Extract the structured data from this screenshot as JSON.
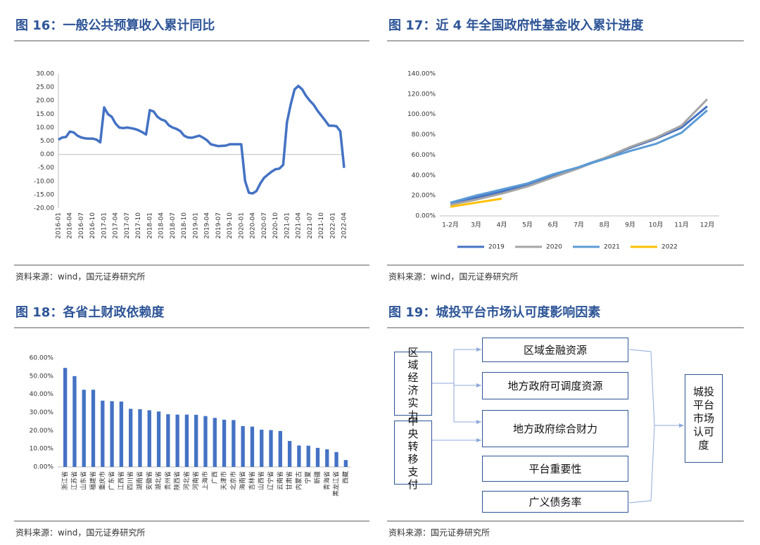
{
  "chart_data": [
    {
      "type": "line",
      "title": "图 16：一般公共预算收入累计同比",
      "source": "资料来源：wind，国元证券研究所",
      "color": "#4472c4",
      "categories": [
        "2016-01",
        null,
        null,
        "2016-04",
        null,
        null,
        "2016-07",
        null,
        null,
        "2016-10",
        null,
        null,
        "2017-01",
        null,
        null,
        "2017-04",
        null,
        null,
        "2017-07",
        null,
        null,
        "2017-10",
        null,
        null,
        "2018-01",
        null,
        null,
        "2018-04",
        null,
        null,
        "2018-07",
        null,
        null,
        "2018-10",
        null,
        null,
        "2019-01",
        null,
        null,
        "2019-04",
        null,
        null,
        "2019-07",
        null,
        null,
        "2019-10",
        null,
        null,
        "2020-01",
        null,
        null,
        "2020-04",
        null,
        null,
        "2020-07",
        null,
        null,
        "2020-10",
        null,
        null,
        "2021-01",
        null,
        null,
        "2021-04",
        null,
        null,
        "2021-07",
        null,
        null,
        "2021-10",
        null,
        null,
        "2022-01",
        null,
        null,
        "2022-04"
      ],
      "values": [
        5.5,
        6.3,
        6.5,
        8.5,
        8.2,
        7.0,
        6.3,
        6.0,
        5.9,
        5.9,
        5.5,
        4.5,
        17.5,
        15.0,
        14.0,
        11.5,
        10.0,
        9.8,
        10.0,
        9.8,
        9.5,
        9.0,
        8.3,
        7.4,
        16.5,
        16.0,
        14.0,
        13.0,
        12.5,
        10.8,
        10.0,
        9.5,
        8.7,
        7.0,
        6.3,
        6.2,
        6.6,
        7.0,
        6.2,
        5.3,
        3.8,
        3.4,
        3.1,
        3.2,
        3.3,
        3.8,
        3.8,
        3.8,
        3.8,
        -9.9,
        -14.3,
        -14.5,
        -13.6,
        -10.8,
        -8.7,
        -7.5,
        -6.4,
        -5.5,
        -5.3,
        -3.9,
        12.0,
        18.7,
        24.2,
        25.5,
        24.2,
        21.8,
        20.0,
        18.5,
        16.3,
        14.5,
        12.7,
        10.7,
        10.7,
        10.5,
        8.6,
        -5.0
      ],
      "ylim": [
        -20,
        30
      ],
      "yticks": [
        {
          "value": 30,
          "label": "30.00"
        },
        {
          "value": 25,
          "label": "25.00"
        },
        {
          "value": 20,
          "label": "20.00"
        },
        {
          "value": 15,
          "label": "15.00"
        },
        {
          "value": 10,
          "label": "10.00"
        },
        {
          "value": 5,
          "label": "5.00"
        },
        {
          "value": 0,
          "label": "0.00"
        },
        {
          "value": -5,
          "label": "-5.00"
        },
        {
          "value": -10,
          "label": "-10.00"
        },
        {
          "value": -15,
          "label": "-15.00"
        },
        {
          "value": -20,
          "label": "-20.00"
        }
      ],
      "grid": false
    },
    {
      "type": "line",
      "title": "图 17：近 4 年全国政府性基金收入累计进度",
      "source": "资料来源：wind，国元证券研究所",
      "categories": [
        "1-2月",
        "3月",
        "4月",
        "5月",
        "6月",
        "7月",
        "8月",
        "9月",
        "10月",
        "11月",
        "12月"
      ],
      "series": [
        {
          "name": "2019",
          "color": "#4472c4",
          "values": [
            12.5,
            18,
            24,
            31,
            40,
            48,
            57,
            67,
            76,
            87,
            108
          ]
        },
        {
          "name": "2020",
          "color": "#a5a5a5",
          "values": [
            11,
            16,
            22,
            29,
            38,
            47,
            57,
            68,
            77,
            89,
            115
          ]
        },
        {
          "name": "2021",
          "color": "#5b9bd5",
          "values": [
            13,
            20,
            26,
            32,
            41,
            48,
            56,
            64,
            71,
            82,
            104
          ]
        },
        {
          "name": "2022",
          "color": "#ffc000",
          "values": [
            9,
            13,
            17,
            null,
            null,
            null,
            null,
            null,
            null,
            null,
            null
          ]
        }
      ],
      "ylim": [
        0,
        140
      ],
      "yticks": [
        {
          "value": 0,
          "label": "0.00%"
        },
        {
          "value": 20,
          "label": "20.00%"
        },
        {
          "value": 40,
          "label": "40.00%"
        },
        {
          "value": 60,
          "label": "60.00%"
        },
        {
          "value": 80,
          "label": "80.00%"
        },
        {
          "value": 100,
          "label": "100.00%"
        },
        {
          "value": 120,
          "label": "120.00%"
        },
        {
          "value": 140,
          "label": "140.00%"
        }
      ],
      "grid": false,
      "legend": "bottom"
    },
    {
      "type": "bar",
      "title": "图 18：各省土财政依赖度",
      "source": "资料来源：wind，国元证券研究所",
      "color": "#4472c4",
      "categories": [
        "浙江省",
        "江苏省",
        "山东省",
        "福建省",
        "重庆市",
        "广东省",
        "江西省",
        "四川省",
        "湖南省",
        "安徽省",
        "湖北省",
        "贵州省",
        "陕西省",
        "河北省",
        "河南省",
        "上海市",
        "广西",
        "天津市",
        "北京市",
        "海南省",
        "吉林省",
        "山西省",
        "辽宁省",
        "云南省",
        "甘肃省",
        "内蒙古",
        "宁夏",
        "新疆",
        "青海省",
        "黑龙江省",
        "西藏"
      ],
      "values": [
        54.5,
        50,
        42.5,
        42.5,
        36.5,
        36.2,
        36,
        32,
        31.8,
        31.2,
        30.5,
        29,
        28.8,
        28.8,
        28.7,
        28,
        27,
        26,
        25.8,
        22.5,
        22.2,
        20.5,
        20.3,
        19.8,
        14.3,
        11.8,
        11.7,
        10.5,
        9.7,
        8.2,
        3.8
      ],
      "ylim": [
        0,
        60
      ],
      "yticks": [
        {
          "value": 0,
          "label": "0.00%"
        },
        {
          "value": 10,
          "label": "10.00%"
        },
        {
          "value": 20,
          "label": "20.00%"
        },
        {
          "value": 30,
          "label": "30.00%"
        },
        {
          "value": 40,
          "label": "40.00%"
        },
        {
          "value": 50,
          "label": "50.00%"
        },
        {
          "value": 60,
          "label": "60.00%"
        }
      ],
      "grid": false
    }
  ],
  "diagram": {
    "title": "图 19：城投平台市场认可度影响因素",
    "source": "资料来源：国元证券研究所",
    "left": [
      "区域经济实力",
      "中央转移支付"
    ],
    "middle": [
      "区域金融资源",
      "地方政府可调度资源",
      "地方政府综合财力",
      "平台重要性",
      "广义债务率"
    ],
    "right": "城投平台市场认可度"
  }
}
